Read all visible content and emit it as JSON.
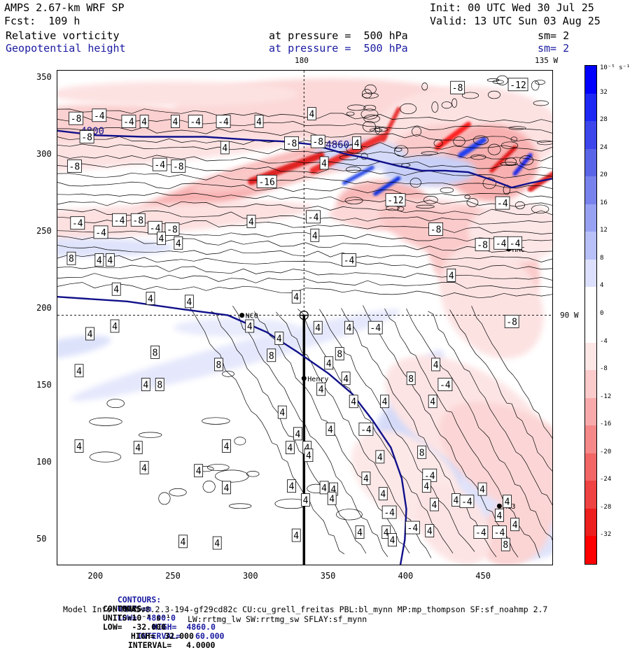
{
  "header": {
    "model": "AMPS 2.67-km WRF SP",
    "init": "Init: 00 UTC Wed 30 Jul 25",
    "forecast": "Fcst:  109 h",
    "valid": "Valid: 13 UTC Sun 03 Aug 25",
    "field1_name": "Relative vorticity",
    "field1_level": "at pressure =  500 hPa",
    "field1_sm": "sm= 2",
    "field2_name": "Geopotential height",
    "field2_level": "at pressure =  500 hPa",
    "field2_sm": "sm= 2"
  },
  "top_axis": {
    "lon_180": "180",
    "lon_135w": "135 W"
  },
  "right_axis": {
    "lon_90w": "90 W"
  },
  "x_ticks": [
    "200",
    "250",
    "300",
    "350",
    "400",
    "450"
  ],
  "y_ticks": [
    "350",
    "300",
    "250",
    "200",
    "150",
    "100",
    "50"
  ],
  "colorbar": {
    "unit": "10⁻⁵ s⁻¹",
    "labels": [
      "32",
      "28",
      "24",
      "20",
      "16",
      "12",
      "8",
      "4",
      "0",
      "-4",
      "-8",
      "-12",
      "-16",
      "-20",
      "-24",
      "-28",
      "-32"
    ],
    "colors": [
      "#0000ff",
      "#1e28f5",
      "#3c46eb",
      "#5a64e6",
      "#7882ec",
      "#98a2f2",
      "#b8c0f8",
      "#dce0fc",
      "#ffffff",
      "#ffffff",
      "#fde6e6",
      "#fbcaca",
      "#f8aaaa",
      "#f58888",
      "#f26666",
      "#ef4242",
      "#ec1e1e",
      "#ff0000"
    ]
  },
  "stations": [
    {
      "name": "HRC",
      "x": 466,
      "y": 239
    },
    {
      "name": "NCO",
      "x": 294,
      "y": 196
    },
    {
      "name": "Henry",
      "x": 334,
      "y": 155
    },
    {
      "name": "AG3",
      "x": 460,
      "y": 72
    }
  ],
  "contour_labels": [
    {
      "t": "-8",
      "x": 433,
      "y": 344
    },
    {
      "t": "-12",
      "x": 472,
      "y": 346
    },
    {
      "t": "4",
      "x": 339,
      "y": 327
    },
    {
      "t": "-8",
      "x": 187,
      "y": 324
    },
    {
      "t": "-4",
      "x": 202,
      "y": 326
    },
    {
      "t": "-4",
      "x": 221,
      "y": 322
    },
    {
      "t": "4",
      "x": 231,
      "y": 322
    },
    {
      "t": "4",
      "x": 251,
      "y": 322
    },
    {
      "t": "-4",
      "x": 264,
      "y": 322
    },
    {
      "t": "-4",
      "x": 282,
      "y": 322
    },
    {
      "t": "4",
      "x": 305,
      "y": 322
    },
    {
      "t": "-8",
      "x": 194,
      "y": 312
    },
    {
      "t": "4",
      "x": 283,
      "y": 305
    },
    {
      "t": "-8",
      "x": 326,
      "y": 308
    },
    {
      "t": "-8",
      "x": 343,
      "y": 309
    },
    {
      "t": "4",
      "x": 368,
      "y": 308
    },
    {
      "t": "-8",
      "x": 186,
      "y": 293
    },
    {
      "t": "-4",
      "x": 241,
      "y": 294
    },
    {
      "t": "-8",
      "x": 253,
      "y": 293
    },
    {
      "t": "4",
      "x": 347,
      "y": 295
    },
    {
      "t": "-16",
      "x": 310,
      "y": 283
    },
    {
      "t": "-12",
      "x": 393,
      "y": 271
    },
    {
      "t": "-4",
      "x": 462,
      "y": 269
    },
    {
      "t": "-4",
      "x": 340,
      "y": 260
    },
    {
      "t": "-4",
      "x": 188,
      "y": 256
    },
    {
      "t": "-4",
      "x": 215,
      "y": 258
    },
    {
      "t": "-8",
      "x": 227,
      "y": 258
    },
    {
      "t": "-4",
      "x": 238,
      "y": 253
    },
    {
      "t": "4",
      "x": 300,
      "y": 257
    },
    {
      "t": "-8",
      "x": 249,
      "y": 252
    },
    {
      "t": "-4",
      "x": 203,
      "y": 250
    },
    {
      "t": "4",
      "x": 341,
      "y": 248
    },
    {
      "t": "-8",
      "x": 419,
      "y": 252
    },
    {
      "t": "4",
      "x": 242,
      "y": 246
    },
    {
      "t": "4",
      "x": 253,
      "y": 243
    },
    {
      "t": "-8",
      "x": 449,
      "y": 242
    },
    {
      "t": "-4",
      "x": 461,
      "y": 243
    },
    {
      "t": "-4",
      "x": 470,
      "y": 243
    },
    {
      "t": "8",
      "x": 184,
      "y": 233
    },
    {
      "t": "4",
      "x": 202,
      "y": 232
    },
    {
      "t": "4",
      "x": 209,
      "y": 232
    },
    {
      "t": "-4",
      "x": 363,
      "y": 232
    },
    {
      "t": "4",
      "x": 429,
      "y": 222
    },
    {
      "t": "4",
      "x": 213,
      "y": 213
    },
    {
      "t": "4",
      "x": 235,
      "y": 207
    },
    {
      "t": "4",
      "x": 260,
      "y": 205
    },
    {
      "t": "4",
      "x": 329,
      "y": 208
    },
    {
      "t": "-8",
      "x": 468,
      "y": 192
    },
    {
      "t": "4",
      "x": 212,
      "y": 189
    },
    {
      "t": "4",
      "x": 299,
      "y": 189
    },
    {
      "t": "4",
      "x": 343,
      "y": 188
    },
    {
      "t": "4",
      "x": 363,
      "y": 188
    },
    {
      "t": "-4",
      "x": 380,
      "y": 188
    },
    {
      "t": "4",
      "x": 196,
      "y": 184
    },
    {
      "t": "4",
      "x": 318,
      "y": 181
    },
    {
      "t": "8",
      "x": 238,
      "y": 172
    },
    {
      "t": "8",
      "x": 313,
      "y": 170
    },
    {
      "t": "8",
      "x": 357,
      "y": 171
    },
    {
      "t": "4",
      "x": 350,
      "y": 165
    },
    {
      "t": "8",
      "x": 279,
      "y": 164
    },
    {
      "t": "4",
      "x": 419,
      "y": 164
    },
    {
      "t": "4",
      "x": 189,
      "y": 160
    },
    {
      "t": "4",
      "x": 361,
      "y": 155
    },
    {
      "t": "8",
      "x": 403,
      "y": 155
    },
    {
      "t": "-4",
      "x": 425,
      "y": 151
    },
    {
      "t": "4",
      "x": 232,
      "y": 151
    },
    {
      "t": "8",
      "x": 241,
      "y": 151
    },
    {
      "t": "4",
      "x": 345,
      "y": 148
    },
    {
      "t": "4",
      "x": 366,
      "y": 140
    },
    {
      "t": "4",
      "x": 386,
      "y": 140
    },
    {
      "t": "4",
      "x": 417,
      "y": 140
    },
    {
      "t": "4",
      "x": 320,
      "y": 133
    },
    {
      "t": "4",
      "x": 351,
      "y": 122
    },
    {
      "t": "-4",
      "x": 374,
      "y": 122
    },
    {
      "t": "4",
      "x": 330,
      "y": 119
    },
    {
      "t": "4",
      "x": 325,
      "y": 110
    },
    {
      "t": "4",
      "x": 336,
      "y": 110
    },
    {
      "t": "4",
      "x": 189,
      "y": 111
    },
    {
      "t": "4",
      "x": 227,
      "y": 110
    },
    {
      "t": "4",
      "x": 284,
      "y": 111
    },
    {
      "t": "8",
      "x": 410,
      "y": 107
    },
    {
      "t": "4",
      "x": 337,
      "y": 105
    },
    {
      "t": "4",
      "x": 383,
      "y": 104
    },
    {
      "t": "4",
      "x": 266,
      "y": 95
    },
    {
      "t": "4",
      "x": 374,
      "y": 90
    },
    {
      "t": "4",
      "x": 231,
      "y": 97
    },
    {
      "t": "-4",
      "x": 415,
      "y": 92
    },
    {
      "t": "4",
      "x": 326,
      "y": 85
    },
    {
      "t": "4",
      "x": 284,
      "y": 84
    },
    {
      "t": "4",
      "x": 347,
      "y": 84
    },
    {
      "t": "4",
      "x": 385,
      "y": 80
    },
    {
      "t": "4",
      "x": 432,
      "y": 76
    },
    {
      "t": "4",
      "x": 413,
      "y": 85
    },
    {
      "t": "4",
      "x": 418,
      "y": 73
    },
    {
      "t": "-4",
      "x": 439,
      "y": 75
    },
    {
      "t": "4",
      "x": 465,
      "y": 75
    },
    {
      "t": "4",
      "x": 449,
      "y": 83
    },
    {
      "t": "4",
      "x": 353,
      "y": 83
    },
    {
      "t": "4",
      "x": 335,
      "y": 76
    },
    {
      "t": "4",
      "x": 352,
      "y": 77
    },
    {
      "t": "-4",
      "x": 389,
      "y": 68
    },
    {
      "t": "4",
      "x": 460,
      "y": 66
    },
    {
      "t": "4",
      "x": 470,
      "y": 60
    },
    {
      "t": "-4",
      "x": 404,
      "y": 58
    },
    {
      "t": "4",
      "x": 370,
      "y": 55
    },
    {
      "t": "4",
      "x": 387,
      "y": 55
    },
    {
      "t": "4",
      "x": 415,
      "y": 56
    },
    {
      "t": "-4",
      "x": 448,
      "y": 55
    },
    {
      "t": "-4",
      "x": 460,
      "y": 55
    },
    {
      "t": "4",
      "x": 256,
      "y": 49
    },
    {
      "t": "4",
      "x": 278,
      "y": 48
    },
    {
      "t": "4",
      "x": 391,
      "y": 50
    },
    {
      "t": "8",
      "x": 464,
      "y": 47
    },
    {
      "t": "4",
      "x": 329,
      "y": 53
    }
  ],
  "height_labels": [
    {
      "t": "4800",
      "x": 190,
      "y": 316
    },
    {
      "t": "4860",
      "x": 348,
      "y": 307
    }
  ],
  "footer": {
    "line1_label": "CONTOURS:",
    "line1_units": "UNITS=m",
    "line1_low": "LOW=  4800.0",
    "line1_high": "HIGH=  4860.0",
    "line1_interval": "INTERVAL=   60.000",
    "line2_label": "CONTOURS:",
    "line2_units": "UNITS=10⁻⁵ s⁻¹",
    "line2_low": "LOW=  -32.000",
    "line2_high": "HIGH=  32.000",
    "line2_interval": "INTERVAL=   4.0000",
    "line3": "Model Info: MPASv8.2.3-194-gf29cd82c CU:cu_grell_freitas PBL:bl_mynn MP:mp_thompson SF:sf_noahmp 2.7",
    "line4": "LW:rrtmg_lw SW:rrtmg_sw SFLAY:sf_mynn"
  }
}
